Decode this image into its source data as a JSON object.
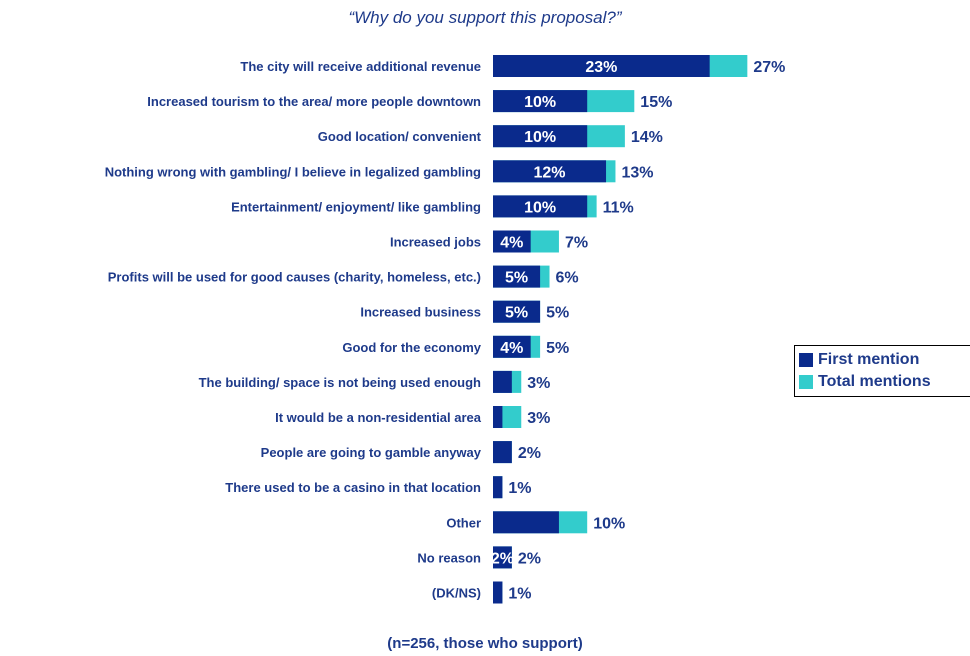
{
  "chart_data": {
    "type": "bar",
    "orientation": "horizontal",
    "stacked": "overlay",
    "title": "“Why do you support this proposal?”",
    "footnote": "(n=256, those who support)",
    "legend_position": "right",
    "grid": false,
    "xlim": [
      0,
      30
    ],
    "colors": {
      "first": "#0a2a8c",
      "total": "#33cccc",
      "text": "#1e3a8a"
    },
    "categories": [
      "The city will receive additional revenue",
      "Increased tourism to the area/ more people downtown",
      "Good location/ convenient",
      "Nothing wrong with gambling/ I believe in legalized gambling",
      "Entertainment/ enjoyment/ like gambling",
      "Increased jobs",
      "Profits will be used for good causes (charity, homeless, etc.)",
      "Increased business",
      "Good for the economy",
      "The building/ space is not being used enough",
      "It would be a non-residential area",
      "People are going to gamble anyway",
      "There used to be a casino in that location",
      "Other",
      "No reason",
      "(DK/NS)"
    ],
    "series": [
      {
        "name": "First mention",
        "values": [
          23,
          10,
          10,
          12,
          10,
          4,
          5,
          5,
          4,
          2,
          1,
          2,
          1,
          7,
          2,
          1
        ],
        "labels": [
          "23%",
          "10%",
          "10%",
          "12%",
          "10%",
          "4%",
          "5%",
          "5%",
          "4%",
          "",
          "",
          "",
          "",
          "",
          "2%",
          ""
        ]
      },
      {
        "name": "Total mentions",
        "values": [
          27,
          15,
          14,
          13,
          11,
          7,
          6,
          5,
          5,
          3,
          3,
          2,
          1,
          10,
          2,
          1
        ],
        "labels": [
          "27%",
          "15%",
          "14%",
          "13%",
          "11%",
          "7%",
          "6%",
          "5%",
          "5%",
          "3%",
          "3%",
          "2%",
          "1%",
          "10%",
          "2%",
          "1%"
        ]
      }
    ]
  }
}
